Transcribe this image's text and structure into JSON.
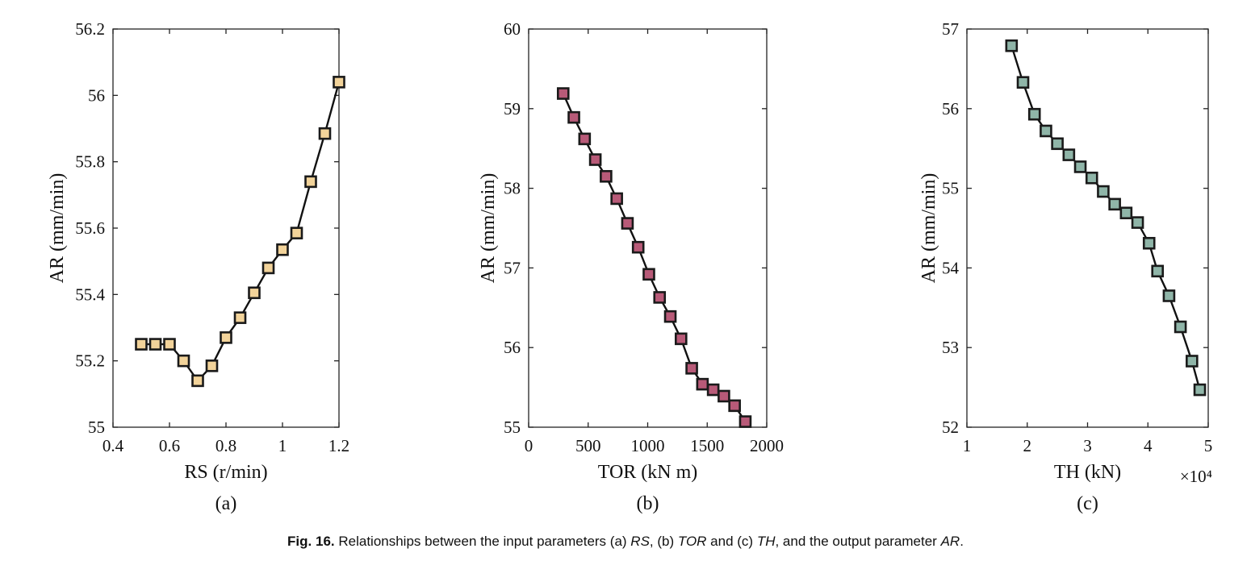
{
  "chart_data": [
    {
      "type": "line",
      "panel_label": "(a)",
      "xlabel": "RS (r/min)",
      "ylabel": "AR (mm/min)",
      "xlim": [
        0.4,
        1.2
      ],
      "ylim": [
        55,
        56.2
      ],
      "xticks": [
        0.4,
        0.6,
        0.8,
        1,
        1.2
      ],
      "xtick_labels": [
        "0.4",
        "0.6",
        "0.8",
        "1",
        "1.2"
      ],
      "yticks": [
        55,
        55.2,
        55.4,
        55.6,
        55.8,
        56,
        56.2
      ],
      "ytick_labels": [
        "55",
        "55.2",
        "55.4",
        "55.6",
        "55.8",
        "56",
        "56.2"
      ],
      "marker_color": "#F2D39A",
      "x": [
        0.5,
        0.55,
        0.6,
        0.65,
        0.7,
        0.75,
        0.8,
        0.85,
        0.9,
        0.95,
        1.0,
        1.05,
        1.1,
        1.15,
        1.2
      ],
      "y": [
        55.25,
        55.25,
        55.25,
        55.2,
        55.14,
        55.185,
        55.27,
        55.33,
        55.405,
        55.48,
        55.535,
        55.585,
        55.74,
        55.885,
        56.04
      ]
    },
    {
      "type": "line",
      "panel_label": "(b)",
      "xlabel": "TOR (kN m)",
      "ylabel": "AR (mm/min)",
      "xlim": [
        0,
        2000
      ],
      "ylim": [
        55,
        60
      ],
      "xticks": [
        0,
        500,
        1000,
        1500,
        2000
      ],
      "xtick_labels": [
        "0",
        "500",
        "1000",
        "1500",
        "2000"
      ],
      "yticks": [
        55,
        56,
        57,
        58,
        59,
        60
      ],
      "ytick_labels": [
        "55",
        "56",
        "57",
        "58",
        "59",
        "60"
      ],
      "marker_color": "#B85A78",
      "x": [
        290,
        380,
        470,
        560,
        650,
        740,
        830,
        920,
        1010,
        1100,
        1190,
        1280,
        1370,
        1460,
        1550,
        1640,
        1730,
        1820
      ],
      "y": [
        59.19,
        58.89,
        58.62,
        58.36,
        58.15,
        57.87,
        57.56,
        57.26,
        56.92,
        56.63,
        56.39,
        56.11,
        55.74,
        55.54,
        55.47,
        55.39,
        55.27,
        55.07
      ]
    },
    {
      "type": "line",
      "panel_label": "(c)",
      "xlabel": "TH (kN)",
      "ylabel": "AR (mm/min)",
      "x_exponent_label": "×10⁴",
      "xlim": [
        1,
        5
      ],
      "ylim": [
        52,
        57
      ],
      "xticks": [
        1,
        2,
        3,
        4,
        5
      ],
      "xtick_labels": [
        "1",
        "2",
        "3",
        "4",
        "5"
      ],
      "yticks": [
        52,
        53,
        54,
        55,
        56,
        57
      ],
      "ytick_labels": [
        "52",
        "53",
        "54",
        "55",
        "56",
        "57"
      ],
      "marker_color": "#8FB5A8",
      "x": [
        1.74,
        1.93,
        2.12,
        2.31,
        2.5,
        2.69,
        2.88,
        3.07,
        3.26,
        3.45,
        3.64,
        3.83,
        4.02,
        4.16,
        4.35,
        4.54,
        4.73,
        4.86
      ],
      "y": [
        56.79,
        56.33,
        55.93,
        55.72,
        55.56,
        55.42,
        55.27,
        55.13,
        54.96,
        54.8,
        54.69,
        54.57,
        54.31,
        53.96,
        53.65,
        53.26,
        52.83,
        52.47
      ]
    }
  ],
  "caption": {
    "fig_number": "Fig. 16.",
    "text_1": "Relationships between the input parameters (a) ",
    "var_rs": "RS",
    "text_2": ", (b) ",
    "var_tor": "TOR",
    "text_3": " and (c) ",
    "var_th": "TH",
    "text_4": ", and the output parameter ",
    "var_ar": "AR",
    "text_5": "."
  }
}
